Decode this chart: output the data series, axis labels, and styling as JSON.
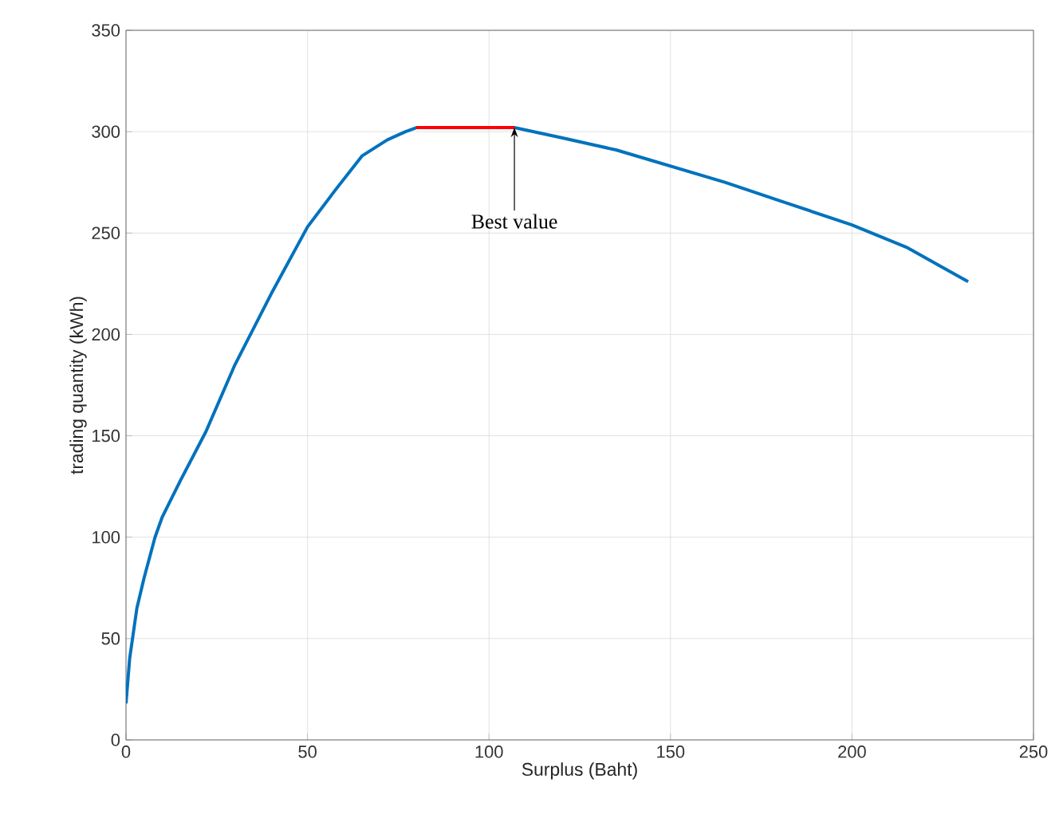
{
  "chart_data": {
    "type": "line",
    "xlabel": "Surplus (Baht)",
    "ylabel": "trading quantity (kWh)",
    "series": [
      {
        "color": "#0072bd",
        "x": [
          0,
          1,
          3,
          5,
          8,
          10,
          15,
          22,
          30,
          40,
          50,
          58,
          65,
          72,
          77,
          80,
          107,
          120,
          135,
          150,
          165,
          180,
          200,
          215,
          225,
          232
        ],
        "values": [
          18,
          40,
          65,
          80,
          100,
          110,
          128,
          152,
          185,
          220,
          253,
          272,
          288,
          296,
          300,
          302,
          302,
          297,
          291,
          283,
          275,
          266,
          254,
          243,
          233,
          226
        ]
      },
      {
        "color": "#ff0000",
        "x": [
          80,
          107
        ],
        "values": [
          302,
          302
        ]
      }
    ],
    "annotations": [
      {
        "text": "Best value",
        "x": 107,
        "y": 302
      }
    ],
    "xlim": [
      0,
      250
    ],
    "ylim": [
      0,
      350
    ],
    "xticks": [
      0,
      50,
      100,
      150,
      200,
      250
    ],
    "yticks": [
      0,
      50,
      100,
      150,
      200,
      250,
      300,
      350
    ],
    "grid": true,
    "line_style": "solid",
    "marker": "none"
  }
}
